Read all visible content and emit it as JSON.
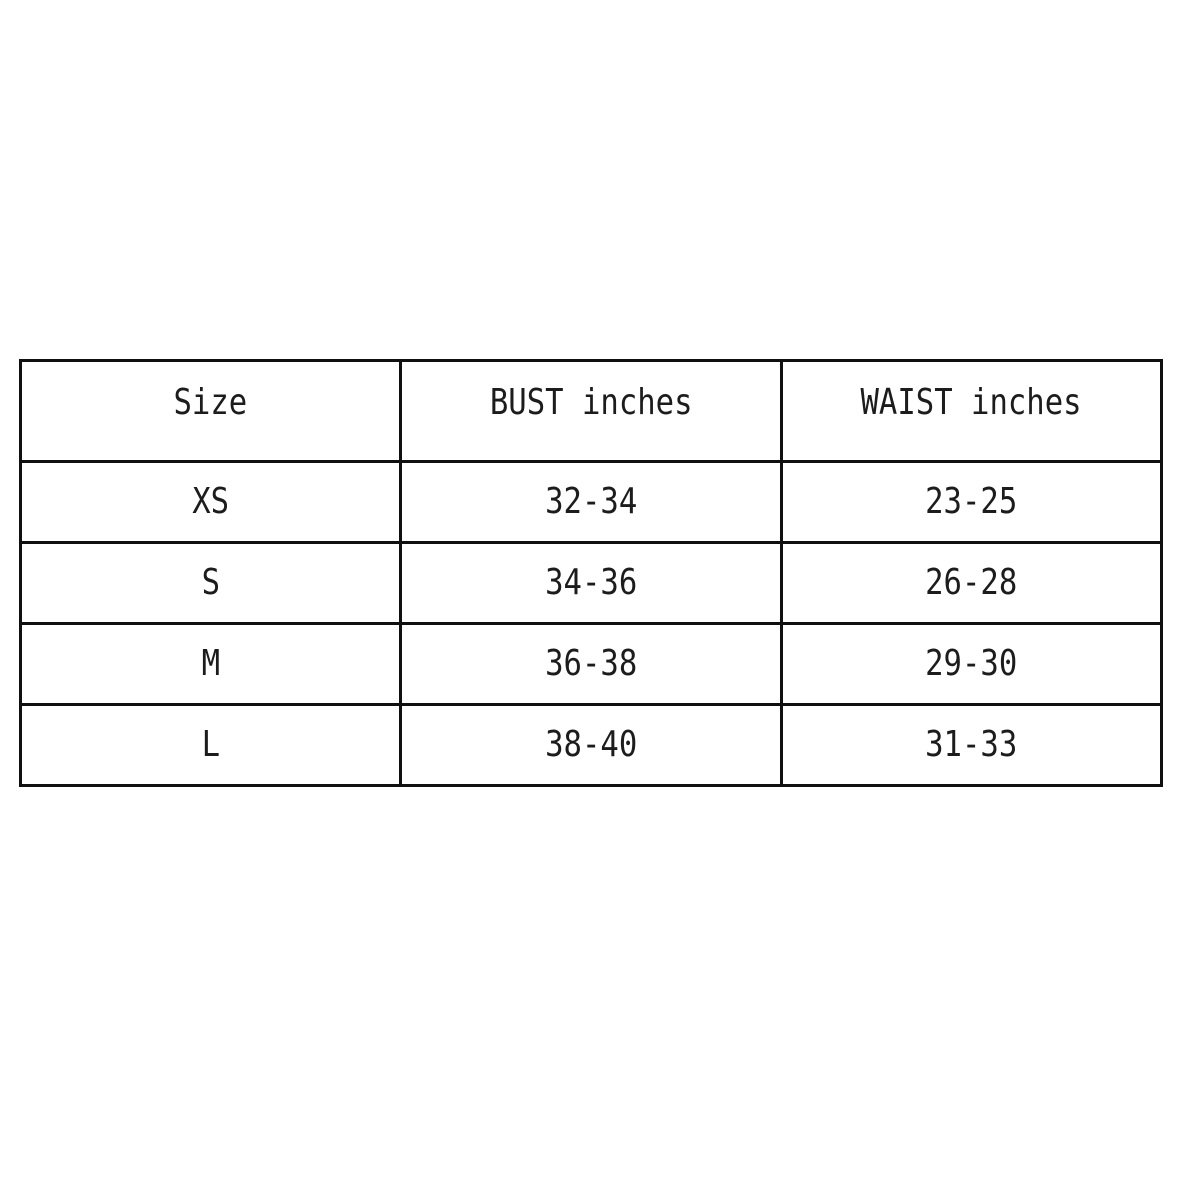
{
  "chart_data": {
    "type": "table",
    "title": "",
    "columns": [
      "Size",
      "BUST inches",
      "WAIST inches"
    ],
    "rows": [
      [
        "XS",
        "32-34",
        "23-25"
      ],
      [
        "S",
        "34-36",
        "26-28"
      ],
      [
        "M",
        "36-38",
        "29-30"
      ],
      [
        "L",
        "38-40",
        "31-33"
      ]
    ],
    "layout": {
      "grid": "on",
      "header_row": true,
      "text_align": "center"
    },
    "colors": {
      "border": "#101010",
      "text": "#1c1c1c",
      "background": "#ffffff"
    }
  }
}
